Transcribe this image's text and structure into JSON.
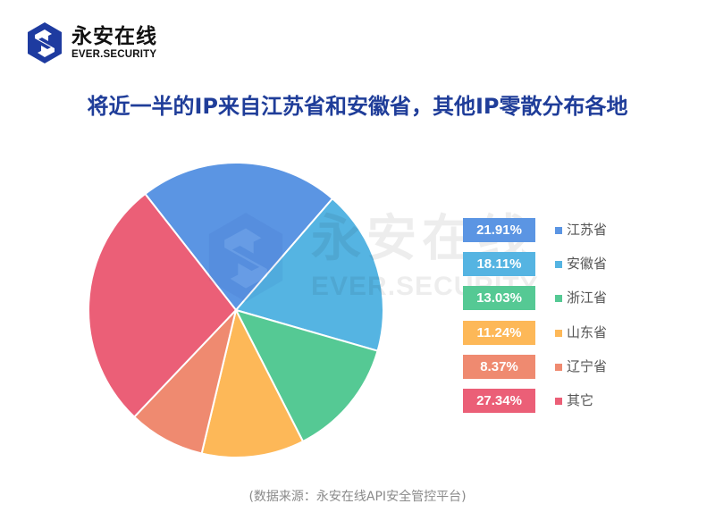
{
  "brand": {
    "name_cn": "永安在线",
    "name_en": "EVER.SECURITY",
    "logo_icon": "ever-security-logo-icon",
    "color": "#1e3ba0"
  },
  "watermark": {
    "name_cn": "永安在线",
    "name_en": "EVER.SECURITY"
  },
  "source_note": "(数据来源：永安在线API安全管控平台)",
  "chart_data": {
    "type": "pie",
    "title": "将近一半的IP来自江苏省和安徽省，其他IP零散分布各地",
    "categories": [
      "江苏省",
      "安徽省",
      "浙江省",
      "山东省",
      "辽宁省",
      "其它"
    ],
    "values": [
      21.91,
      18.11,
      13.03,
      11.24,
      8.37,
      27.34
    ],
    "value_labels": [
      "21.91%",
      "18.11%",
      "13.03%",
      "11.24%",
      "8.37%",
      "27.34%"
    ],
    "colors": [
      "#5b95e3",
      "#55b4e2",
      "#55c994",
      "#fdb858",
      "#ef8a70",
      "#eb5f77"
    ],
    "start_angle_deg": -38,
    "direction": "clockwise",
    "legend_position": "right",
    "unit": "%"
  }
}
